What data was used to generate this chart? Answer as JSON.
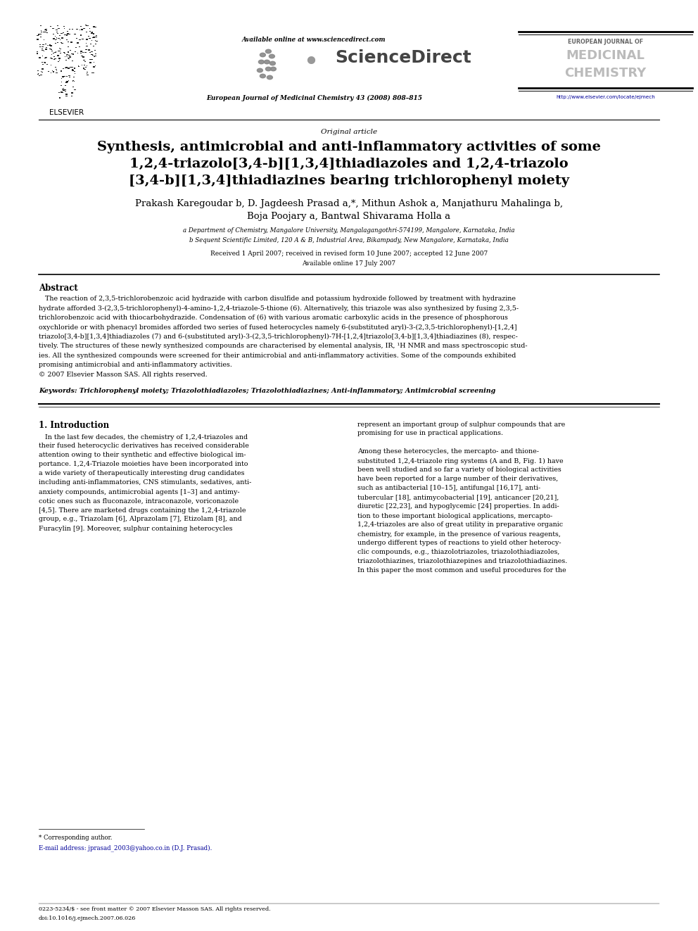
{
  "page_width": 9.92,
  "page_height": 13.23,
  "dpi": 100,
  "background_color": "#ffffff",
  "header_available_online": "Available online at www.sciencedirect.com",
  "header_journal_line": "European Journal of Medicinal Chemistry 43 (2008) 808–815",
  "header_url": "http://www.elsevier.com/locate/ejmech",
  "eur_line1": "EUROPEAN JOURNAL OF",
  "eur_line2": "MEDICINAL",
  "eur_line3": "CHEMISTRY",
  "article_type": "Original article",
  "title_line1": "Synthesis, antimicrobial and anti-inflammatory activities of some",
  "title_line2": "1,2,4-triazolo[3,4-b][1,3,4]thiadiazoles and 1,2,4-triazolo",
  "title_line3": "[3,4-b][1,3,4]thiadiazines bearing trichlorophenyl moiety",
  "authors_line1": "Prakash Karegoudar b, D. Jagdeesh Prasad a,*, Mithun Ashok a, Manjathuru Mahalinga b,",
  "authors_line2": "Boja Poojary a, Bantwal Shivarama Holla a",
  "affil_a": "a Department of Chemistry, Mangalore University, Mangalagangothri-574199, Mangalore, Karnataka, India",
  "affil_b": "b Sequent Scientific Limited, 120 A & B, Industrial Area, Bikampady, New Mangalore, Karnataka, India",
  "received": "Received 1 April 2007; received in revised form 10 June 2007; accepted 12 June 2007",
  "available_online2": "Available online 17 July 2007",
  "abstract_title": "Abstract",
  "keywords_text": "Keywords: Trichlorophenyl moiety; Triazolothiadiazoles; Triazolothiadiazines; Anti-inflammatory; Antimicrobial screening",
  "intro_title": "1. Introduction",
  "corresponding_star": "* Corresponding author.",
  "email_line": "E-mail address: jprasad_2003@yahoo.co.in (D.J. Prasad).",
  "footer_line1": "0223-5234/$ - see front matter © 2007 Elsevier Masson SAS. All rights reserved.",
  "footer_line2": "doi:10.1016/j.ejmech.2007.06.026",
  "text_color": "#000000",
  "blue_color": "#000099",
  "gray_dark": "#444444",
  "gray_med": "#777777",
  "gray_light": "#aaaaaa"
}
